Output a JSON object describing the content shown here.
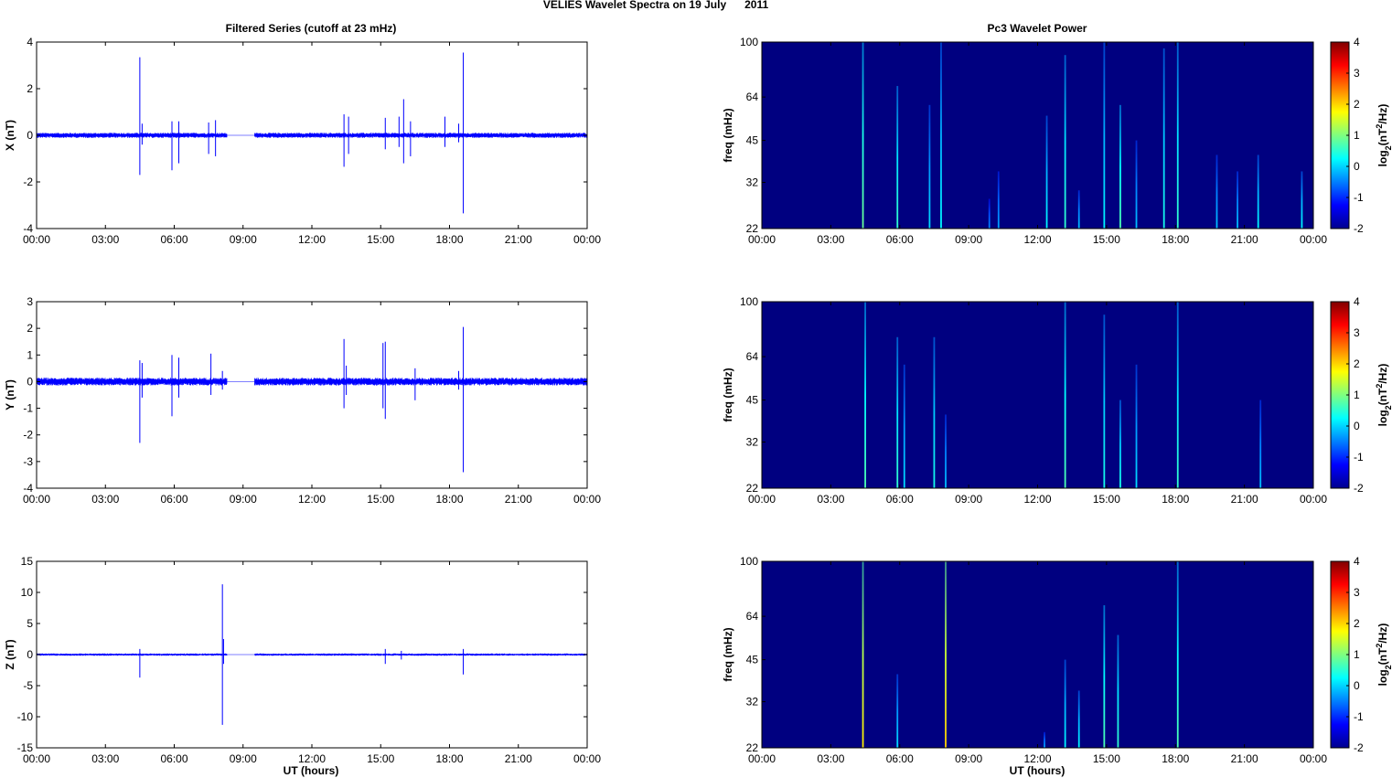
{
  "figure": {
    "title": "VELIES Wavelet Spectra on 19 July      2011",
    "left_title": "Filtered Series (cutoff at 23 mHz)",
    "right_title": "Pc3 Wavelet Power",
    "xlabel": "UT (hours)",
    "freq_label": "freq (mHz)",
    "colorbar_label": "log2(nT2/Hz)",
    "colorbar_label_parts": {
      "base": "log",
      "sub": "2",
      "pre": "(nT",
      "sup": "2",
      "post": "/Hz)"
    },
    "colors": {
      "series": "#0000ff",
      "background": "#000080"
    }
  },
  "chart_data": [
    {
      "type": "line",
      "name": "X",
      "ylabel": "X (nT)",
      "xlim": [
        0,
        24
      ],
      "ylim": [
        -4,
        4
      ],
      "yticks": [
        -4,
        -2,
        0,
        2,
        4
      ],
      "xticks": [
        "00:00",
        "03:00",
        "06:00",
        "09:00",
        "12:00",
        "15:00",
        "18:00",
        "21:00",
        "00:00"
      ],
      "data_gap": [
        8.3,
        9.5
      ],
      "noise_amplitude": 0.09,
      "spikes": [
        [
          4.5,
          3.35,
          -1.7
        ],
        [
          4.6,
          0.5,
          -0.4
        ],
        [
          5.9,
          0.6,
          -1.5
        ],
        [
          6.2,
          0.6,
          -1.2
        ],
        [
          7.5,
          0.55,
          -0.8
        ],
        [
          7.8,
          0.65,
          -0.9
        ],
        [
          13.4,
          0.9,
          -1.35
        ],
        [
          13.6,
          0.8,
          -0.8
        ],
        [
          15.2,
          0.75,
          -0.6
        ],
        [
          15.8,
          0.8,
          -0.5
        ],
        [
          16.0,
          1.55,
          -1.2
        ],
        [
          16.3,
          0.6,
          -0.9
        ],
        [
          17.8,
          0.8,
          -0.5
        ],
        [
          18.6,
          3.55,
          -3.35
        ],
        [
          18.4,
          0.5,
          -0.3
        ]
      ]
    },
    {
      "type": "line",
      "name": "Y",
      "ylabel": "Y (nT)",
      "xlim": [
        0,
        24
      ],
      "ylim": [
        -4,
        3
      ],
      "yticks": [
        -4,
        -3,
        -2,
        -1,
        0,
        1,
        2,
        3
      ],
      "xticks": [
        "00:00",
        "03:00",
        "06:00",
        "09:00",
        "12:00",
        "15:00",
        "18:00",
        "21:00",
        "00:00"
      ],
      "data_gap": [
        8.3,
        9.5
      ],
      "noise_amplitude": 0.12,
      "spikes": [
        [
          4.5,
          0.8,
          -2.3
        ],
        [
          4.6,
          0.7,
          -0.6
        ],
        [
          5.9,
          1.0,
          -1.3
        ],
        [
          6.2,
          0.9,
          -0.6
        ],
        [
          7.6,
          1.05,
          -0.5
        ],
        [
          8.1,
          0.4,
          -0.3
        ],
        [
          13.4,
          1.6,
          -1.0
        ],
        [
          13.5,
          0.6,
          -0.5
        ],
        [
          15.1,
          1.45,
          -1.0
        ],
        [
          15.2,
          1.5,
          -1.4
        ],
        [
          16.5,
          0.5,
          -0.7
        ],
        [
          18.6,
          2.05,
          -3.4
        ],
        [
          18.4,
          0.4,
          -0.3
        ]
      ]
    },
    {
      "type": "line",
      "name": "Z",
      "ylabel": "Z (nT)",
      "xlim": [
        0,
        24
      ],
      "ylim": [
        -15,
        15
      ],
      "yticks": [
        -15,
        -10,
        -5,
        0,
        5,
        10,
        15
      ],
      "xticks": [
        "00:00",
        "03:00",
        "06:00",
        "09:00",
        "12:00",
        "15:00",
        "18:00",
        "21:00",
        "00:00"
      ],
      "data_gap": [
        8.3,
        9.5
      ],
      "noise_amplitude": 0.15,
      "spikes": [
        [
          4.5,
          0.9,
          -3.7
        ],
        [
          8.1,
          11.3,
          -11.3
        ],
        [
          8.15,
          2.5,
          -1.5
        ],
        [
          15.2,
          0.9,
          -1.5
        ],
        [
          15.9,
          0.6,
          -0.8
        ],
        [
          18.6,
          0.9,
          -3.2
        ]
      ]
    },
    {
      "type": "heatmap",
      "name": "Pc3 power X",
      "ylabel": "freq (mHz)",
      "xlim": [
        0,
        24
      ],
      "ylim": [
        22,
        100
      ],
      "yticks": [
        22,
        32,
        45,
        64,
        100
      ],
      "xticks": [
        "00:00",
        "03:00",
        "06:00",
        "09:00",
        "12:00",
        "15:00",
        "18:00",
        "21:00",
        "00:00"
      ],
      "clim": [
        -2,
        4
      ],
      "cticks": [
        -2,
        -1,
        0,
        1,
        2,
        3,
        4
      ],
      "events": [
        [
          4.4,
          100,
          0.6
        ],
        [
          5.9,
          70,
          0.5
        ],
        [
          7.3,
          60,
          0.35
        ],
        [
          7.8,
          100,
          0.4
        ],
        [
          9.9,
          28,
          0.2
        ],
        [
          10.3,
          35,
          0.25
        ],
        [
          12.4,
          55,
          0.4
        ],
        [
          13.2,
          90,
          0.5
        ],
        [
          13.8,
          30,
          0.3
        ],
        [
          14.9,
          100,
          0.4
        ],
        [
          15.6,
          60,
          0.55
        ],
        [
          16.3,
          45,
          0.3
        ],
        [
          17.5,
          95,
          0.45
        ],
        [
          18.1,
          100,
          0.5
        ],
        [
          19.8,
          40,
          0.3
        ],
        [
          20.7,
          35,
          0.3
        ],
        [
          21.6,
          40,
          0.4
        ],
        [
          23.5,
          35,
          0.4
        ]
      ]
    },
    {
      "type": "heatmap",
      "name": "Pc3 power Y",
      "ylabel": "freq (mHz)",
      "xlim": [
        0,
        24
      ],
      "ylim": [
        22,
        100
      ],
      "yticks": [
        22,
        32,
        45,
        64,
        100
      ],
      "xticks": [
        "00:00",
        "03:00",
        "06:00",
        "09:00",
        "12:00",
        "15:00",
        "18:00",
        "21:00",
        "00:00"
      ],
      "clim": [
        -2,
        4
      ],
      "cticks": [
        -2,
        -1,
        0,
        1,
        2,
        3,
        4
      ],
      "events": [
        [
          4.5,
          100,
          0.55
        ],
        [
          5.9,
          75,
          0.5
        ],
        [
          6.2,
          60,
          0.35
        ],
        [
          7.5,
          75,
          0.45
        ],
        [
          8.0,
          40,
          0.3
        ],
        [
          13.2,
          100,
          0.55
        ],
        [
          14.9,
          90,
          0.45
        ],
        [
          15.6,
          45,
          0.45
        ],
        [
          16.3,
          60,
          0.35
        ],
        [
          18.1,
          100,
          0.5
        ],
        [
          21.7,
          45,
          0.3
        ]
      ]
    },
    {
      "type": "heatmap",
      "name": "Pc3 power Z",
      "ylabel": "freq (mHz)",
      "xlim": [
        0,
        24
      ],
      "ylim": [
        22,
        100
      ],
      "yticks": [
        22,
        32,
        45,
        64,
        100
      ],
      "xticks": [
        "00:00",
        "03:00",
        "06:00",
        "09:00",
        "12:00",
        "15:00",
        "18:00",
        "21:00",
        "00:00"
      ],
      "clim": [
        -2,
        4
      ],
      "cticks": [
        -2,
        -1,
        0,
        1,
        2,
        3,
        4
      ],
      "events": [
        [
          4.4,
          100,
          0.9
        ],
        [
          5.9,
          40,
          0.35
        ],
        [
          8.0,
          100,
          0.95
        ],
        [
          12.3,
          25,
          0.25
        ],
        [
          13.2,
          45,
          0.4
        ],
        [
          13.8,
          35,
          0.4
        ],
        [
          14.9,
          70,
          0.55
        ],
        [
          15.5,
          55,
          0.5
        ],
        [
          18.1,
          100,
          0.55
        ]
      ]
    }
  ]
}
